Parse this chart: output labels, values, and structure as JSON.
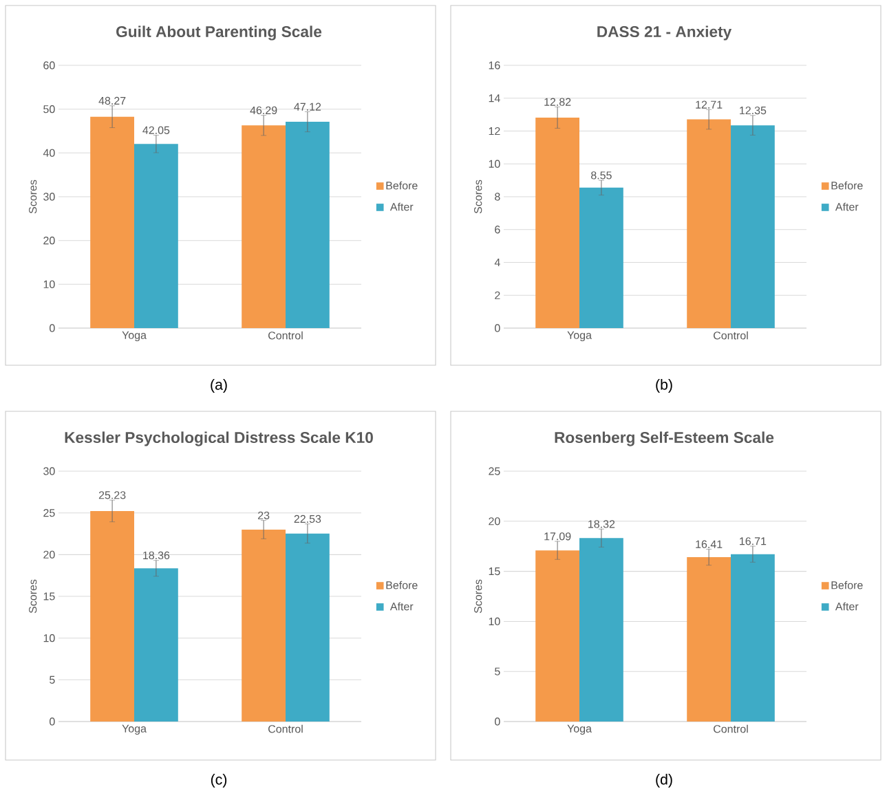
{
  "chart_data": [
    {
      "type": "bar",
      "title": "Guilt About Parenting Scale",
      "ylabel": "Scores",
      "categories": [
        "Yoga",
        "Control"
      ],
      "series": [
        {
          "name": "Before",
          "color": "#f59a4a",
          "values": [
            48.27,
            46.29
          ],
          "errors": [
            2.5,
            2.3
          ]
        },
        {
          "name": "After",
          "color": "#3eabc6",
          "values": [
            42.05,
            47.12
          ],
          "errors": [
            2.0,
            2.3
          ]
        }
      ],
      "ylim": [
        0,
        60
      ],
      "yticks": [
        0,
        10,
        20,
        30,
        40,
        50,
        60
      ],
      "grid": "y",
      "legend": "right",
      "data_labels": true,
      "annotations": [
        "(a)"
      ]
    },
    {
      "type": "bar",
      "title": "DASS 21 - Anxiety",
      "ylabel": "Scores",
      "categories": [
        "Yoga",
        "Control"
      ],
      "series": [
        {
          "name": "Before",
          "color": "#f59a4a",
          "values": [
            12.82,
            12.71
          ],
          "errors": [
            0.65,
            0.6
          ]
        },
        {
          "name": "After",
          "color": "#3eabc6",
          "values": [
            8.55,
            12.35
          ],
          "errors": [
            0.45,
            0.6
          ]
        }
      ],
      "ylim": [
        0,
        16
      ],
      "yticks": [
        0,
        2,
        4,
        6,
        8,
        10,
        12,
        14,
        16
      ],
      "grid": "y",
      "legend": "right",
      "data_labels": true,
      "annotations": [
        "(b)"
      ]
    },
    {
      "type": "bar",
      "title": "Kessler Psychological Distress Scale K10",
      "ylabel": "Scores",
      "categories": [
        "Yoga",
        "Control"
      ],
      "series": [
        {
          "name": "Before",
          "color": "#f59a4a",
          "values": [
            25.23,
            23
          ],
          "errors": [
            1.3,
            1.1
          ]
        },
        {
          "name": "After",
          "color": "#3eabc6",
          "values": [
            18.36,
            22.53
          ],
          "errors": [
            0.95,
            1.15
          ]
        }
      ],
      "ylim": [
        0,
        30
      ],
      "yticks": [
        0,
        5,
        10,
        15,
        20,
        25,
        30
      ],
      "grid": "y",
      "legend": "right",
      "data_labels": true,
      "annotations": [
        "(c)"
      ]
    },
    {
      "type": "bar",
      "title": "Rosenberg Self-Esteem Scale",
      "ylabel": "Scores",
      "categories": [
        "Yoga",
        "Control"
      ],
      "series": [
        {
          "name": "Before",
          "color": "#f59a4a",
          "values": [
            17.09,
            16.41
          ],
          "errors": [
            0.9,
            0.8
          ]
        },
        {
          "name": "After",
          "color": "#3eabc6",
          "values": [
            18.32,
            16.71
          ],
          "errors": [
            0.9,
            0.8
          ]
        }
      ],
      "ylim": [
        0,
        25
      ],
      "yticks": [
        0,
        5,
        10,
        15,
        20,
        25
      ],
      "grid": "y",
      "legend": "right",
      "data_labels": true,
      "annotations": [
        "(d)"
      ]
    }
  ]
}
